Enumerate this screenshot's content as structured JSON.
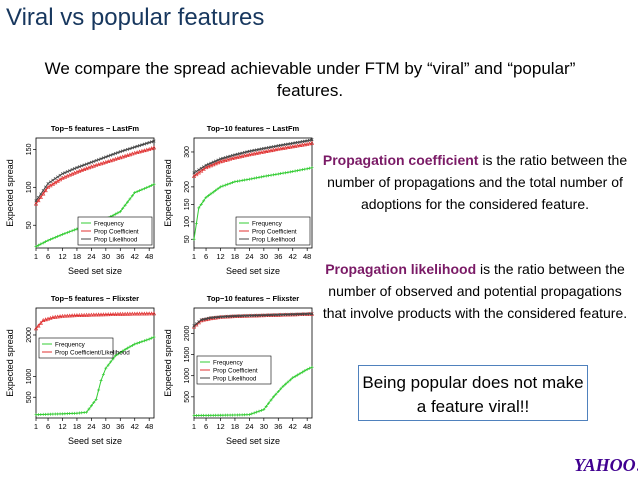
{
  "slide": {
    "title": "Viral vs popular features",
    "subtitle": "We compare the spread achievable under FTM by “viral” and “popular” features."
  },
  "descriptions": [
    {
      "term": "Propagation coefficient",
      "text": " is the ratio between the number of propagations and the total number of adoptions for the considered feature."
    },
    {
      "term": "Propagation likelihood",
      "text": " is the ratio between the number of observed and potential propagations that involve products with the considered feature."
    }
  ],
  "callout": {
    "text": "Being popular does not make a feature viral!!"
  },
  "logo": {
    "text": "YAHOO!",
    "color": "#400090"
  },
  "colors": {
    "title": "#17375e",
    "highlight": "#7a1a66",
    "frequency": "#33cc33",
    "coefficient": "#e03030",
    "likelihood": "#444444",
    "callout_border": "#4f81bd"
  },
  "chart_data": [
    {
      "type": "line",
      "title": "Top−5 features − LastFm",
      "xlabel": "Seed set size",
      "ylabel": "Expected spread",
      "xticks": [
        1,
        6,
        12,
        18,
        24,
        30,
        36,
        42,
        48
      ],
      "yticks": [
        50,
        100,
        150
      ],
      "xlim": [
        1,
        50
      ],
      "ylim": [
        20,
        165
      ],
      "legend": "bottom-right",
      "series": [
        {
          "name": "Frequency",
          "color": "#33cc33",
          "points": [
            [
              1,
              22
            ],
            [
              6,
              30
            ],
            [
              12,
              38
            ],
            [
              18,
              45
            ],
            [
              24,
              52
            ],
            [
              30,
              58
            ],
            [
              36,
              68
            ],
            [
              42,
              93
            ],
            [
              48,
              101
            ],
            [
              50,
              104
            ]
          ]
        },
        {
          "name": "Prop Coefficient",
          "color": "#e03030",
          "points": [
            [
              1,
              78
            ],
            [
              6,
              100
            ],
            [
              12,
              112
            ],
            [
              18,
              120
            ],
            [
              24,
              127
            ],
            [
              30,
              133
            ],
            [
              36,
              139
            ],
            [
              42,
              145
            ],
            [
              48,
              150
            ],
            [
              50,
              152
            ]
          ]
        },
        {
          "name": "Prop Likelihood",
          "color": "#444444",
          "points": [
            [
              1,
              82
            ],
            [
              6,
              105
            ],
            [
              12,
              118
            ],
            [
              18,
              126
            ],
            [
              24,
              133
            ],
            [
              30,
              140
            ],
            [
              36,
              147
            ],
            [
              42,
              153
            ],
            [
              48,
              159
            ],
            [
              50,
              161
            ]
          ]
        }
      ]
    },
    {
      "type": "line",
      "title": "Top−10 features − LastFm",
      "xlabel": "Seed set size",
      "ylabel": "Expected spread",
      "xticks": [
        1,
        6,
        12,
        18,
        24,
        30,
        36,
        42,
        48
      ],
      "yticks": [
        50,
        100,
        150,
        200,
        300
      ],
      "ylim": [
        25,
        340
      ],
      "xlim": [
        1,
        50
      ],
      "legend": "bottom-right",
      "series": [
        {
          "name": "Frequency",
          "color": "#33cc33",
          "points": [
            [
              1,
              50
            ],
            [
              3,
              140
            ],
            [
              6,
              170
            ],
            [
              12,
              200
            ],
            [
              18,
              215
            ],
            [
              24,
              222
            ],
            [
              30,
              230
            ],
            [
              36,
              237
            ],
            [
              42,
              244
            ],
            [
              48,
              252
            ],
            [
              50,
              255
            ]
          ]
        },
        {
          "name": "Prop Coefficient",
          "color": "#e03030",
          "points": [
            [
              1,
              230
            ],
            [
              6,
              255
            ],
            [
              12,
              272
            ],
            [
              18,
              283
            ],
            [
              24,
              292
            ],
            [
              30,
              300
            ],
            [
              36,
              308
            ],
            [
              42,
              315
            ],
            [
              48,
              322
            ],
            [
              50,
              325
            ]
          ]
        },
        {
          "name": "Prop Likelihood",
          "color": "#444444",
          "points": [
            [
              1,
              240
            ],
            [
              6,
              262
            ],
            [
              12,
              280
            ],
            [
              18,
              292
            ],
            [
              24,
              302
            ],
            [
              30,
              310
            ],
            [
              36,
              318
            ],
            [
              42,
              325
            ],
            [
              48,
              332
            ],
            [
              50,
              335
            ]
          ]
        }
      ]
    },
    {
      "type": "line",
      "title": "Top−5 features − Flixster",
      "xlabel": "Seed set size",
      "ylabel": "Expected spread",
      "xticks": [
        1,
        6,
        12,
        18,
        24,
        30,
        36,
        42,
        48
      ],
      "yticks": [
        500,
        1000,
        2000
      ],
      "ylim": [
        0,
        2650
      ],
      "xlim": [
        1,
        50
      ],
      "legend": "top-left",
      "series": [
        {
          "name": "Frequency",
          "color": "#33cc33",
          "points": [
            [
              1,
              80
            ],
            [
              6,
              90
            ],
            [
              12,
              100
            ],
            [
              18,
              115
            ],
            [
              22,
              140
            ],
            [
              26,
              450
            ],
            [
              28,
              900
            ],
            [
              30,
              1200
            ],
            [
              34,
              1500
            ],
            [
              38,
              1650
            ],
            [
              42,
              1780
            ],
            [
              48,
              1900
            ],
            [
              50,
              1950
            ]
          ]
        },
        {
          "name": "Prop Coefficient/Likelihood",
          "color": "#e03030",
          "points": [
            [
              1,
              2150
            ],
            [
              4,
              2350
            ],
            [
              8,
              2420
            ],
            [
              12,
              2450
            ],
            [
              18,
              2470
            ],
            [
              24,
              2480
            ],
            [
              30,
              2490
            ],
            [
              36,
              2500
            ],
            [
              42,
              2505
            ],
            [
              48,
              2510
            ],
            [
              50,
              2512
            ]
          ]
        }
      ]
    },
    {
      "type": "line",
      "title": "Top−10 features − Flixster",
      "xlabel": "Seed set size",
      "ylabel": "Expected spread",
      "xticks": [
        1,
        6,
        12,
        18,
        24,
        30,
        36,
        42,
        48
      ],
      "yticks": [
        500,
        1000,
        1500,
        2000
      ],
      "ylim": [
        0,
        2600
      ],
      "xlim": [
        1,
        50
      ],
      "legend": "mid-left",
      "series": [
        {
          "name": "Frequency",
          "color": "#33cc33",
          "points": [
            [
              1,
              60
            ],
            [
              6,
              62
            ],
            [
              12,
              65
            ],
            [
              18,
              70
            ],
            [
              24,
              80
            ],
            [
              30,
              200
            ],
            [
              34,
              500
            ],
            [
              38,
              750
            ],
            [
              42,
              950
            ],
            [
              48,
              1150
            ],
            [
              50,
              1200
            ]
          ]
        },
        {
          "name": "Prop Coefficient",
          "color": "#e03030",
          "points": [
            [
              1,
              2150
            ],
            [
              4,
              2300
            ],
            [
              8,
              2350
            ],
            [
              12,
              2380
            ],
            [
              18,
              2400
            ],
            [
              24,
              2410
            ],
            [
              30,
              2420
            ],
            [
              36,
              2430
            ],
            [
              42,
              2440
            ],
            [
              48,
              2450
            ],
            [
              50,
              2455
            ]
          ]
        },
        {
          "name": "Prop Likelihood",
          "color": "#444444",
          "points": [
            [
              1,
              2180
            ],
            [
              4,
              2320
            ],
            [
              8,
              2370
            ],
            [
              12,
              2390
            ],
            [
              18,
              2410
            ],
            [
              24,
              2420
            ],
            [
              30,
              2430
            ],
            [
              36,
              2440
            ],
            [
              42,
              2450
            ],
            [
              48,
              2460
            ],
            [
              50,
              2465
            ]
          ]
        }
      ]
    }
  ]
}
